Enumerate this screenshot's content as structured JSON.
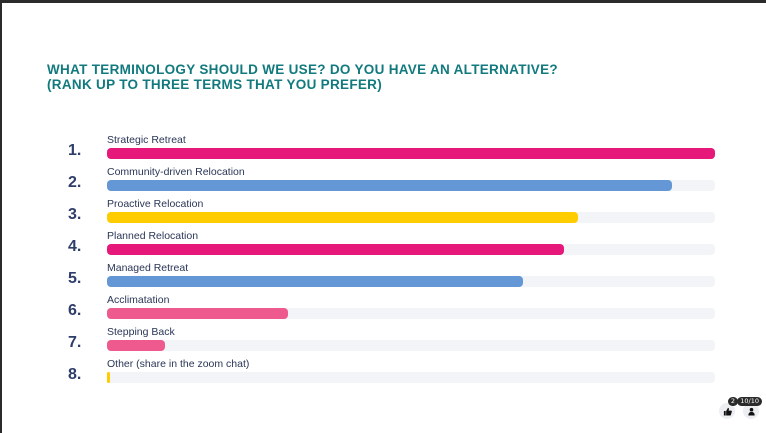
{
  "title_lines": [
    "WHAT TERMINOLOGY SHOULD WE USE? DO YOU HAVE AN ALTERNATIVE?",
    "(RANK UP TO THREE TERMS THAT YOU PREFER)"
  ],
  "items": [
    {
      "rank": "1.",
      "label": "Strategic Retreat",
      "fill": 1.0,
      "color": "#e6187a"
    },
    {
      "rank": "2.",
      "label": "Community-driven Relocation",
      "fill": 0.93,
      "color": "#6497d6"
    },
    {
      "rank": "3.",
      "label": "Proactive Relocation",
      "fill": 0.775,
      "color": "#ffcc00"
    },
    {
      "rank": "4.",
      "label": "Planned Relocation",
      "fill": 0.752,
      "color": "#e6187a"
    },
    {
      "rank": "5.",
      "label": "Managed Retreat",
      "fill": 0.684,
      "color": "#6497d6"
    },
    {
      "rank": "6.",
      "label": "Acclimatation",
      "fill": 0.298,
      "color": "#ee5a8e"
    },
    {
      "rank": "7.",
      "label": "Stepping Back",
      "fill": 0.095,
      "color": "#ee5a8e"
    },
    {
      "rank": "8.",
      "label": "Other (share in the zoom chat)",
      "fill": 0.005,
      "color": "#ffcc00"
    }
  ],
  "footer": {
    "likes_count": "2",
    "likes_icon": "thumbs-up-icon",
    "participants_count": "10/10",
    "participants_icon": "person-icon"
  }
}
